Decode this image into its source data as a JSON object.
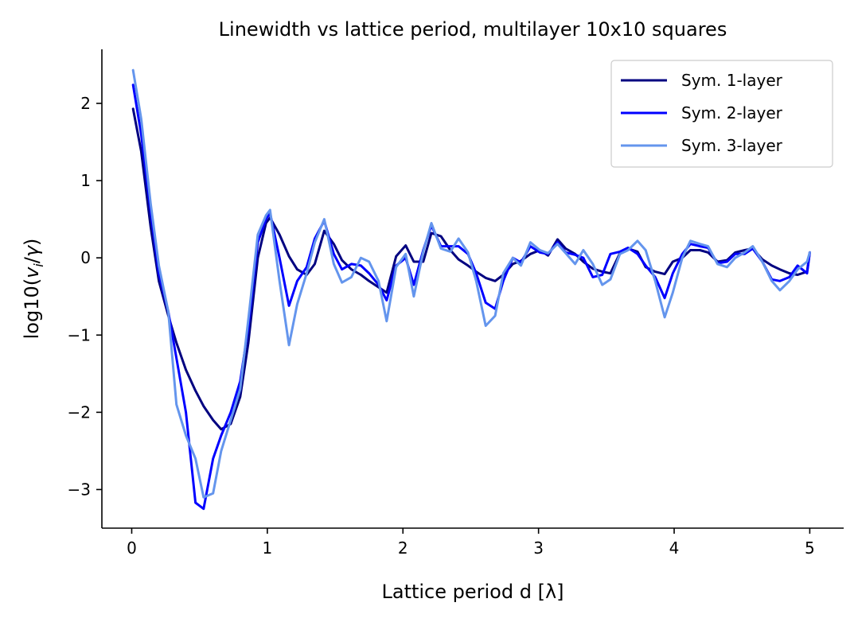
{
  "chart_data": {
    "type": "line",
    "title": "Linewidth vs lattice period, multilayer 10x10 squares",
    "xlabel": "Lattice period d [λ]",
    "ylabel": "log10(v_i/γ)",
    "xlim": [
      -0.22,
      5.25
    ],
    "ylim": [
      -3.5,
      2.7
    ],
    "xticks": [
      0,
      1,
      2,
      3,
      4,
      5
    ],
    "xtick_labels": [
      "0",
      "1",
      "2",
      "3",
      "4",
      "5"
    ],
    "yticks": [
      -3,
      -2,
      -1,
      0,
      1,
      2
    ],
    "ytick_labels": [
      "−3",
      "−2",
      "−1",
      "0",
      "1",
      "2"
    ],
    "grid": false,
    "legend_position": "top-right",
    "x": [
      0.01,
      0.07,
      0.14,
      0.2,
      0.27,
      0.33,
      0.4,
      0.47,
      0.53,
      0.6,
      0.66,
      0.73,
      0.8,
      0.86,
      0.93,
      0.99,
      1.02,
      1.09,
      1.16,
      1.22,
      1.29,
      1.35,
      1.42,
      1.49,
      1.55,
      1.62,
      1.69,
      1.75,
      1.82,
      1.88,
      1.95,
      2.02,
      2.08,
      2.15,
      2.21,
      2.28,
      2.35,
      2.41,
      2.48,
      2.54,
      2.61,
      2.68,
      2.74,
      2.81,
      2.87,
      2.94,
      3.01,
      3.07,
      3.14,
      3.2,
      3.27,
      3.33,
      3.4,
      3.47,
      3.53,
      3.6,
      3.66,
      3.73,
      3.79,
      3.86,
      3.93,
      3.99,
      4.06,
      4.12,
      4.19,
      4.25,
      4.32,
      4.39,
      4.45,
      4.52,
      4.58,
      4.65,
      4.72,
      4.78,
      4.85,
      4.91,
      4.98,
      5.0
    ],
    "series": [
      {
        "name": "Sym. 1-layer",
        "color": "#000080",
        "values": [
          1.93,
          1.38,
          0.4,
          -0.3,
          -0.75,
          -1.1,
          -1.45,
          -1.72,
          -1.92,
          -2.1,
          -2.22,
          -2.15,
          -1.8,
          -1.1,
          0.0,
          0.45,
          0.52,
          0.3,
          0.02,
          -0.15,
          -0.22,
          -0.08,
          0.35,
          0.18,
          -0.03,
          -0.15,
          -0.22,
          -0.3,
          -0.38,
          -0.45,
          0.02,
          0.16,
          -0.05,
          -0.05,
          0.32,
          0.28,
          0.1,
          -0.02,
          -0.1,
          -0.18,
          -0.26,
          -0.3,
          -0.22,
          -0.08,
          -0.04,
          0.05,
          0.1,
          0.03,
          0.24,
          0.12,
          0.05,
          -0.05,
          -0.14,
          -0.18,
          -0.2,
          0.06,
          0.12,
          0.08,
          -0.12,
          -0.18,
          -0.21,
          -0.05,
          0.0,
          0.1,
          0.1,
          0.07,
          -0.05,
          -0.03,
          0.07,
          0.1,
          0.12,
          -0.02,
          -0.1,
          -0.15,
          -0.2,
          -0.22,
          -0.18,
          0.07
        ]
      },
      {
        "name": "Sym. 2-layer",
        "color": "#0000ff",
        "values": [
          2.24,
          1.6,
          0.6,
          -0.2,
          -0.7,
          -1.3,
          -2.0,
          -3.17,
          -3.25,
          -2.6,
          -2.3,
          -2.0,
          -1.6,
          -0.9,
          0.2,
          0.5,
          0.58,
          0.0,
          -0.62,
          -0.3,
          -0.12,
          0.25,
          0.48,
          0.05,
          -0.15,
          -0.08,
          -0.1,
          -0.2,
          -0.35,
          -0.55,
          -0.1,
          0.0,
          -0.35,
          0.1,
          0.42,
          0.15,
          0.15,
          0.15,
          0.05,
          -0.2,
          -0.58,
          -0.66,
          -0.3,
          0.0,
          -0.06,
          0.15,
          0.07,
          0.05,
          0.2,
          0.07,
          0.04,
          0.0,
          -0.25,
          -0.22,
          0.05,
          0.08,
          0.13,
          0.05,
          -0.1,
          -0.25,
          -0.52,
          -0.2,
          0.05,
          0.18,
          0.15,
          0.13,
          -0.07,
          -0.05,
          0.05,
          0.05,
          0.12,
          -0.05,
          -0.28,
          -0.3,
          -0.25,
          -0.1,
          -0.2,
          0.07
        ]
      },
      {
        "name": "Sym. 3-layer",
        "color": "#6495ed",
        "values": [
          2.43,
          1.8,
          0.7,
          -0.1,
          -0.7,
          -1.9,
          -2.3,
          -2.6,
          -3.1,
          -3.05,
          -2.5,
          -2.1,
          -1.7,
          -0.8,
          0.3,
          0.55,
          0.62,
          -0.3,
          -1.13,
          -0.6,
          -0.2,
          0.2,
          0.5,
          -0.08,
          -0.32,
          -0.25,
          0.0,
          -0.05,
          -0.3,
          -0.82,
          -0.12,
          0.05,
          -0.5,
          0.08,
          0.45,
          0.12,
          0.08,
          0.25,
          0.07,
          -0.3,
          -0.88,
          -0.75,
          -0.2,
          0.0,
          -0.1,
          0.2,
          0.1,
          0.06,
          0.18,
          0.06,
          -0.08,
          0.1,
          -0.08,
          -0.35,
          -0.28,
          0.05,
          0.1,
          0.22,
          0.1,
          -0.3,
          -0.77,
          -0.45,
          0.0,
          0.22,
          0.18,
          0.15,
          -0.08,
          -0.12,
          0.0,
          0.07,
          0.15,
          -0.05,
          -0.3,
          -0.42,
          -0.3,
          -0.15,
          -0.05,
          0.07
        ]
      }
    ]
  }
}
